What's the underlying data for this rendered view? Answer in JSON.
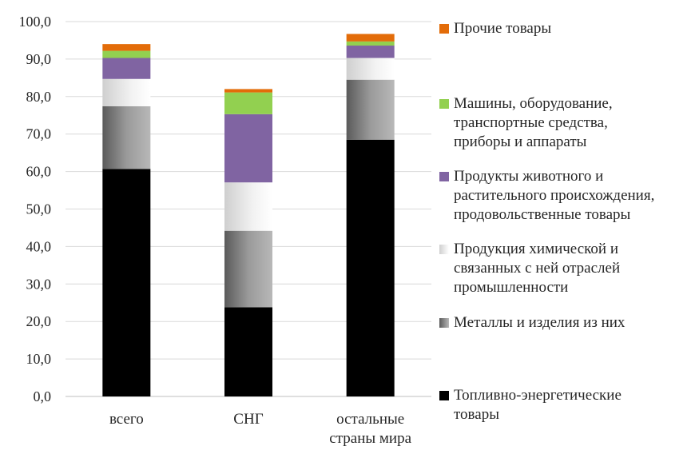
{
  "chart_data": {
    "type": "bar",
    "stacked": true,
    "categories": [
      "всего",
      "СНГ",
      "остальные\nстраны мира"
    ],
    "ylim": [
      0,
      100
    ],
    "yticks": [
      "0,0",
      "10,0",
      "20,0",
      "30,0",
      "40,0",
      "50,0",
      "60,0",
      "70,0",
      "80,0",
      "90,0",
      "100,0"
    ],
    "grid": true,
    "legend_position": "right",
    "series": [
      {
        "name": "Топливно-энергетические\nтовары",
        "color": "#000000",
        "style": "solid",
        "values": [
          60.7,
          23.8,
          68.5
        ]
      },
      {
        "name": "Металлы и изделия из них",
        "color": "#8c8c8c",
        "style": "gradient-dark",
        "values": [
          16.7,
          20.4,
          16.0
        ]
      },
      {
        "name": "Продукция химической и\nсвязанных с ней отраслей\nпромышленности",
        "color": "#e0e0e0",
        "style": "gradient-light",
        "values": [
          7.3,
          12.9,
          5.8
        ]
      },
      {
        "name": "Продукты животного и\nрастительного происхождения,\nпродовольственные товары",
        "color": "#8064a2",
        "style": "solid",
        "values": [
          5.6,
          18.2,
          3.3
        ]
      },
      {
        "name": "Машины, оборудование,\nтранспортные средства,\nприборы и аппараты",
        "color": "#92d050",
        "style": "solid",
        "values": [
          1.9,
          5.8,
          1.1
        ]
      },
      {
        "name": "Прочие товары",
        "color": "#e36c09",
        "style": "solid",
        "values": [
          1.8,
          0.9,
          2.0
        ]
      }
    ]
  }
}
